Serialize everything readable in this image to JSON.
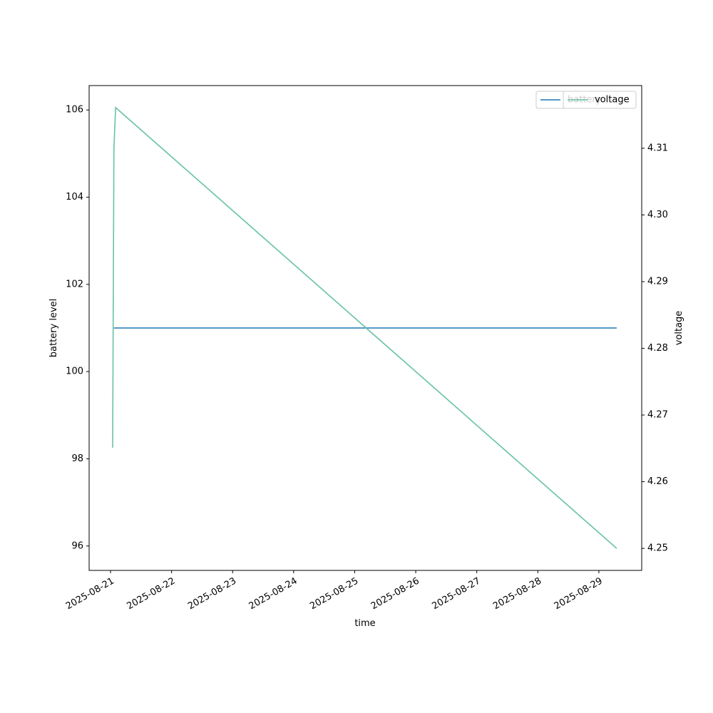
{
  "chart_data": {
    "type": "line",
    "x_label": "time",
    "y_label": "battery level",
    "y2_label": "voltage",
    "x": [
      "2025-08-21T00:50",
      "2025-08-21T01:20",
      "2025-08-21T02:00",
      "2025-08-29T07:00"
    ],
    "xlim": [
      "2025-08-20T15:35",
      "2025-08-29T16:50"
    ],
    "xticks": [
      "2025-08-21",
      "2025-08-22",
      "2025-08-23",
      "2025-08-24",
      "2025-08-25",
      "2025-08-26",
      "2025-08-27",
      "2025-08-28",
      "2025-08-29"
    ],
    "ylim": [
      95.44,
      106.56
    ],
    "yticks": [
      96,
      98,
      100,
      102,
      104,
      106
    ],
    "y2lim": [
      4.2467,
      4.3194
    ],
    "y2ticks": [
      4.25,
      4.26,
      4.27,
      4.28,
      4.29,
      {
        "value": 4.3,
        "label": "4.30"
      },
      4.31
    ],
    "series": [
      {
        "name": "battery",
        "color": "#1f77b4",
        "values": [
          null,
          101,
          101,
          101
        ]
      },
      {
        "name": "voltage",
        "color": "#66c2a5",
        "axis": "y2",
        "values": [
          4.2651,
          4.31,
          4.3161,
          4.25
        ]
      }
    ],
    "legend": "upper right"
  }
}
